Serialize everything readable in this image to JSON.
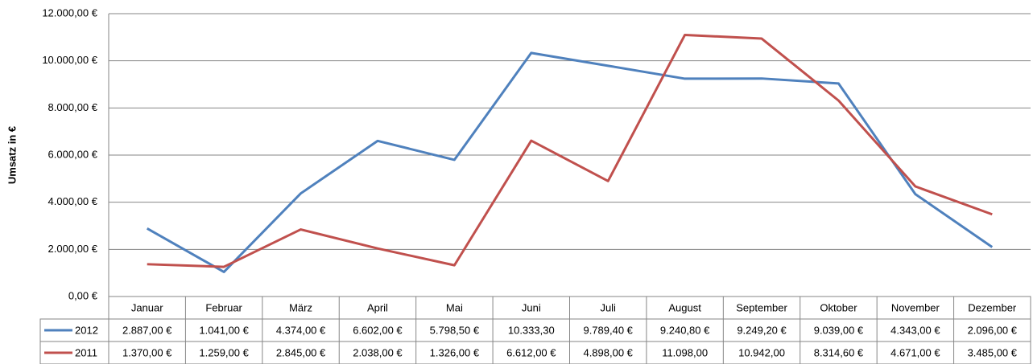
{
  "chart_data": {
    "type": "line",
    "y_label": "Umsatz in €",
    "categories": [
      "Januar",
      "Februar",
      "März",
      "April",
      "Mai",
      "Juni",
      "Juli",
      "August",
      "September",
      "Oktober",
      "November",
      "Dezember"
    ],
    "series": [
      {
        "name": "2012",
        "color": "#4f81bd",
        "values": [
          2887,
          1041,
          4374,
          6602,
          5798.5,
          10333.3,
          9789.4,
          9240.8,
          9249.2,
          9039,
          4343,
          2096
        ],
        "value_labels": [
          "2.887,00 €",
          "1.041,00 €",
          "4.374,00 €",
          "6.602,00 €",
          "5.798,50 €",
          "10.333,30",
          "9.789,40 €",
          "9.240,80 €",
          "9.249,20 €",
          "9.039,00 €",
          "4.343,00 €",
          "2.096,00 €"
        ]
      },
      {
        "name": "2011",
        "color": "#c0504d",
        "values": [
          1370,
          1259,
          2845,
          2038,
          1326,
          6612,
          4898,
          11098,
          10942,
          8314.6,
          4671,
          3485
        ],
        "value_labels": [
          "1.370,00 €",
          "1.259,00 €",
          "2.845,00 €",
          "2.038,00 €",
          "1.326,00 €",
          "6.612,00 €",
          "4.898,00 €",
          "11.098,00",
          "10.942,00",
          "8.314,60 €",
          "4.671,00 €",
          "3.485,00 €"
        ]
      }
    ],
    "ylim": [
      0,
      12000
    ],
    "yticks": [
      {
        "value": 0,
        "label": "0,00 €"
      },
      {
        "value": 2000,
        "label": "2.000,00 €"
      },
      {
        "value": 4000,
        "label": "4.000,00 €"
      },
      {
        "value": 6000,
        "label": "6.000,00 €"
      },
      {
        "value": 8000,
        "label": "8.000,00 €"
      },
      {
        "value": 10000,
        "label": "10.000,00 €"
      },
      {
        "value": 12000,
        "label": "12.000,00 €"
      }
    ],
    "grid": true
  }
}
